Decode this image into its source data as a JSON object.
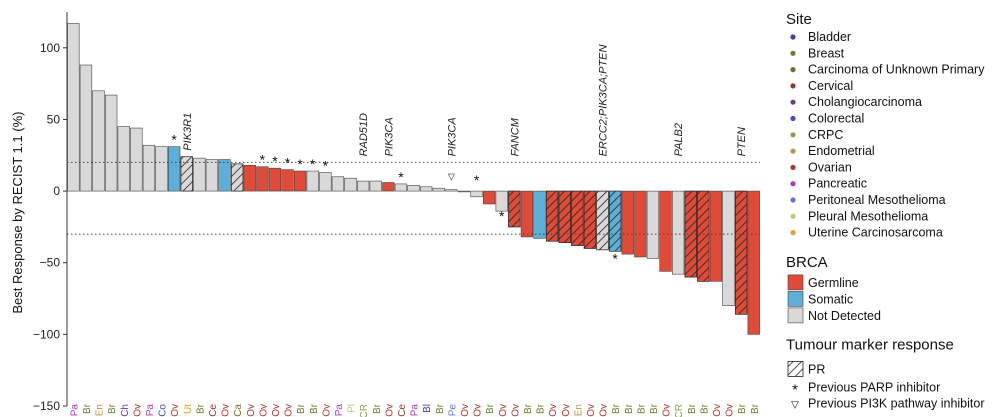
{
  "chart_data": {
    "type": "bar",
    "ylabel": "Best Response by RECIST 1.1 (%)",
    "ylim": [
      -150,
      125
    ],
    "yticks": [
      100,
      50,
      0,
      -50,
      -100,
      -150
    ],
    "ytick_labels": [
      "100",
      "50",
      "0",
      "−50",
      "−100",
      "−150"
    ],
    "reference_lines": [
      20,
      -30
    ],
    "grid": false,
    "values": [
      117,
      88,
      70,
      67,
      45,
      44,
      32,
      31,
      31,
      24,
      23,
      22,
      22,
      19,
      18,
      17,
      16,
      15,
      14,
      14,
      13,
      10,
      9,
      7,
      7,
      6,
      5,
      4,
      3,
      2,
      1,
      0,
      -4,
      -9,
      -14,
      -25,
      -32,
      -33,
      -35,
      -36,
      -38,
      -40,
      -41,
      -42,
      -44,
      -46,
      -47,
      -56,
      -58,
      -60,
      -63,
      -63,
      -80,
      -86,
      -100
    ],
    "site_codes": [
      "Pa",
      "Br",
      "En",
      "Br",
      "Ch",
      "Ov",
      "Pa",
      "Co",
      "Ov",
      "Ut",
      "Br",
      "Ce",
      "Ov",
      "Ca",
      "Ov",
      "Ov",
      "Ov",
      "Ov",
      "Br",
      "Br",
      "Ov",
      "Pa",
      "Pl",
      "CR",
      "Br",
      "Ov",
      "Ce",
      "Pa",
      "Bl",
      "Br",
      "Pe",
      "Ov",
      "Ov",
      "Br",
      "Ov",
      "Ov",
      "Br",
      "Br",
      "Ov",
      "Ov",
      "En",
      "Ov",
      "Ov",
      "Br",
      "Br",
      "Br",
      "Br",
      "Ov",
      "CR",
      "Br",
      "Br",
      "Ov",
      "Ov",
      "Br",
      "Br"
    ],
    "brca": [
      "none",
      "none",
      "none",
      "none",
      "none",
      "none",
      "none",
      "none",
      "somatic",
      "none",
      "none",
      "none",
      "somatic",
      "none",
      "germline",
      "germline",
      "germline",
      "germline",
      "germline",
      "none",
      "none",
      "none",
      "none",
      "none",
      "none",
      "germline",
      "none",
      "none",
      "none",
      "none",
      "none",
      "none",
      "none",
      "germline",
      "none",
      "germline",
      "germline",
      "somatic",
      "germline",
      "germline",
      "germline",
      "germline",
      "none",
      "somatic",
      "germline",
      "germline",
      "none",
      "germline",
      "none",
      "germline",
      "germline",
      "germline",
      "none",
      "germline",
      "germline"
    ],
    "tumour_marker_pr": [
      9,
      13,
      35,
      38,
      39,
      40,
      41,
      42,
      43,
      49,
      50,
      53
    ],
    "prev_parp": [
      8,
      15,
      16,
      17,
      18,
      19,
      20,
      26,
      32,
      34,
      43
    ],
    "prev_pi3k": [
      30
    ],
    "bar_annotations": [
      {
        "bar": 9,
        "text": "PIK3R1"
      },
      {
        "bar": 23,
        "text": "RAD51D"
      },
      {
        "bar": 25,
        "text": "PIK3CA"
      },
      {
        "bar": 30,
        "text": "PIK3CA"
      },
      {
        "bar": 35,
        "text": "FANCM"
      },
      {
        "bar": 42,
        "text": "ERCC2;PIK3CA;PTEN"
      },
      {
        "bar": 48,
        "text": "PALB2"
      },
      {
        "bar": 53,
        "text": "PTEN"
      }
    ],
    "legend": {
      "site": {
        "title": "Site",
        "items": [
          {
            "code": "Bl",
            "label": "Bladder",
            "color": "#4a3aa6"
          },
          {
            "code": "Br",
            "label": "Breast",
            "color": "#6b7d2f"
          },
          {
            "code": "Ca",
            "label": "Carcinoma of Unknown Primary",
            "color": "#7a6a2e"
          },
          {
            "code": "Ce",
            "label": "Cervical",
            "color": "#8a3a34"
          },
          {
            "code": "Ch",
            "label": "Cholangiocarcinoma",
            "color": "#6e3b8e"
          },
          {
            "code": "Co",
            "label": "Colorectal",
            "color": "#3f4fb5"
          },
          {
            "code": "CR",
            "label": "CRPC",
            "color": "#82a34e"
          },
          {
            "code": "En",
            "label": "Endometrial",
            "color": "#b7954a"
          },
          {
            "code": "Ov",
            "label": "Ovarian",
            "color": "#a8342c"
          },
          {
            "code": "Pa",
            "label": "Pancreatic",
            "color": "#a340b0"
          },
          {
            "code": "Pe",
            "label": "Peritoneal Mesothelioma",
            "color": "#6a6fd6"
          },
          {
            "code": "Pl",
            "label": "Pleural Mesothelioma",
            "color": "#b7cc70"
          },
          {
            "code": "Ut",
            "label": "Uterine Carcinosarcoma",
            "color": "#d9a52e"
          }
        ]
      },
      "brca": {
        "title": "BRCA",
        "items": [
          {
            "key": "germline",
            "label": "Germline",
            "color": "#e04a38"
          },
          {
            "key": "somatic",
            "label": "Somatic",
            "color": "#5cb0d8"
          },
          {
            "key": "none",
            "label": "Not Detected",
            "color": "#d9d9d9"
          }
        ]
      },
      "tumour_marker": {
        "title": "Tumour marker response",
        "items": [
          {
            "label": "PR"
          }
        ]
      },
      "symbols": [
        {
          "symbol": "*",
          "label": "Previous PARP inhibitor"
        },
        {
          "symbol": "▽",
          "label": "Previous PI3K pathway inhibitor"
        }
      ]
    }
  }
}
